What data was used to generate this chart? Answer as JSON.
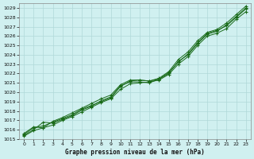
{
  "title": "Graphe pression niveau de la mer (hPa)",
  "xlabel": "Graphe pression niveau de la mer (hPa)",
  "bg_color": "#d0f0f0",
  "grid_major_color": "#b0d8d8",
  "grid_minor_color": "#c0e4e4",
  "line_color": "#1a6b1a",
  "ylim": [
    1015,
    1029.5
  ],
  "xlim": [
    -0.5,
    23.5
  ],
  "yticks": [
    1015,
    1016,
    1017,
    1018,
    1019,
    1020,
    1021,
    1022,
    1023,
    1024,
    1025,
    1026,
    1027,
    1028,
    1029
  ],
  "xticks": [
    0,
    1,
    2,
    3,
    4,
    5,
    6,
    7,
    8,
    9,
    10,
    11,
    12,
    13,
    14,
    15,
    16,
    17,
    18,
    19,
    20,
    21,
    22,
    23
  ],
  "series": [
    [
      1015.5,
      1016.2,
      1016.4,
      1016.8,
      1017.2,
      1017.6,
      1018.2,
      1018.6,
      1019.0,
      1019.4,
      1020.6,
      1021.2,
      1021.3,
      1021.2,
      1021.4,
      1022.0,
      1023.3,
      1024.0,
      1025.2,
      1026.2,
      1026.5,
      1027.2,
      1028.1,
      1029.0
    ],
    [
      1015.3,
      1015.9,
      1016.2,
      1016.5,
      1017.0,
      1017.4,
      1017.9,
      1018.4,
      1018.9,
      1019.3,
      1020.3,
      1020.9,
      1021.0,
      1021.1,
      1021.3,
      1021.9,
      1023.0,
      1023.8,
      1025.0,
      1026.0,
      1026.3,
      1026.8,
      1027.8,
      1028.6
    ],
    [
      1015.6,
      1016.3,
      1016.2,
      1016.9,
      1017.3,
      1017.8,
      1018.3,
      1018.8,
      1019.3,
      1019.7,
      1020.8,
      1021.3,
      1021.3,
      1021.2,
      1021.5,
      1022.2,
      1023.5,
      1024.3,
      1025.5,
      1026.4,
      1026.7,
      1027.4,
      1028.3,
      1029.2
    ],
    [
      1015.4,
      1016.0,
      1016.8,
      1016.7,
      1017.1,
      1017.5,
      1018.1,
      1018.5,
      1019.1,
      1019.5,
      1020.7,
      1021.1,
      1021.1,
      1021.0,
      1021.4,
      1022.1,
      1023.2,
      1024.1,
      1025.3,
      1026.3,
      1026.6,
      1027.1,
      1028.0,
      1028.9
    ]
  ],
  "marker": "+"
}
